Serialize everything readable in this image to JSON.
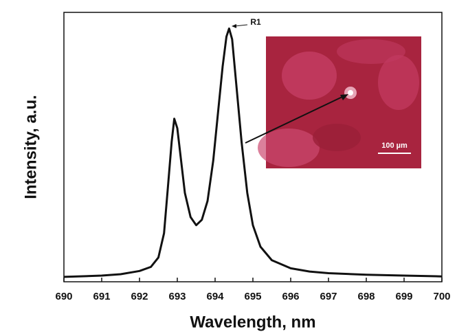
{
  "chart_data": {
    "type": "line",
    "x_label": "Wavelength, nm",
    "y_label": "Intensity, a.u.",
    "annotation": "R1",
    "inset_scale_label": "100 µm",
    "x": [
      690,
      691,
      691.5,
      692,
      692.3,
      692.5,
      692.65,
      692.75,
      692.85,
      692.92,
      693.0,
      693.1,
      693.2,
      693.35,
      693.5,
      693.65,
      693.8,
      693.95,
      694.1,
      694.2,
      694.3,
      694.37,
      694.45,
      694.55,
      694.7,
      694.85,
      695.0,
      695.2,
      695.5,
      696,
      696.5,
      697,
      698,
      699,
      700
    ],
    "series": [
      {
        "color": "#111111",
        "values": [
          1.8,
          2.3,
          2.8,
          4,
          5.5,
          9,
          18,
          35,
          52,
          60.5,
          57,
          45,
          33,
          24,
          21,
          23,
          30,
          45,
          66,
          80,
          91,
          94,
          90,
          75,
          52,
          33,
          21,
          13,
          8,
          5,
          3.8,
          3.2,
          2.6,
          2.3,
          2.0
        ]
      }
    ],
    "xlim": [
      690,
      700
    ],
    "xticks": [
      690,
      691,
      692,
      693,
      694,
      695,
      696,
      697,
      698,
      699,
      700
    ],
    "ylim": [
      0,
      100
    ],
    "grid": false
  }
}
